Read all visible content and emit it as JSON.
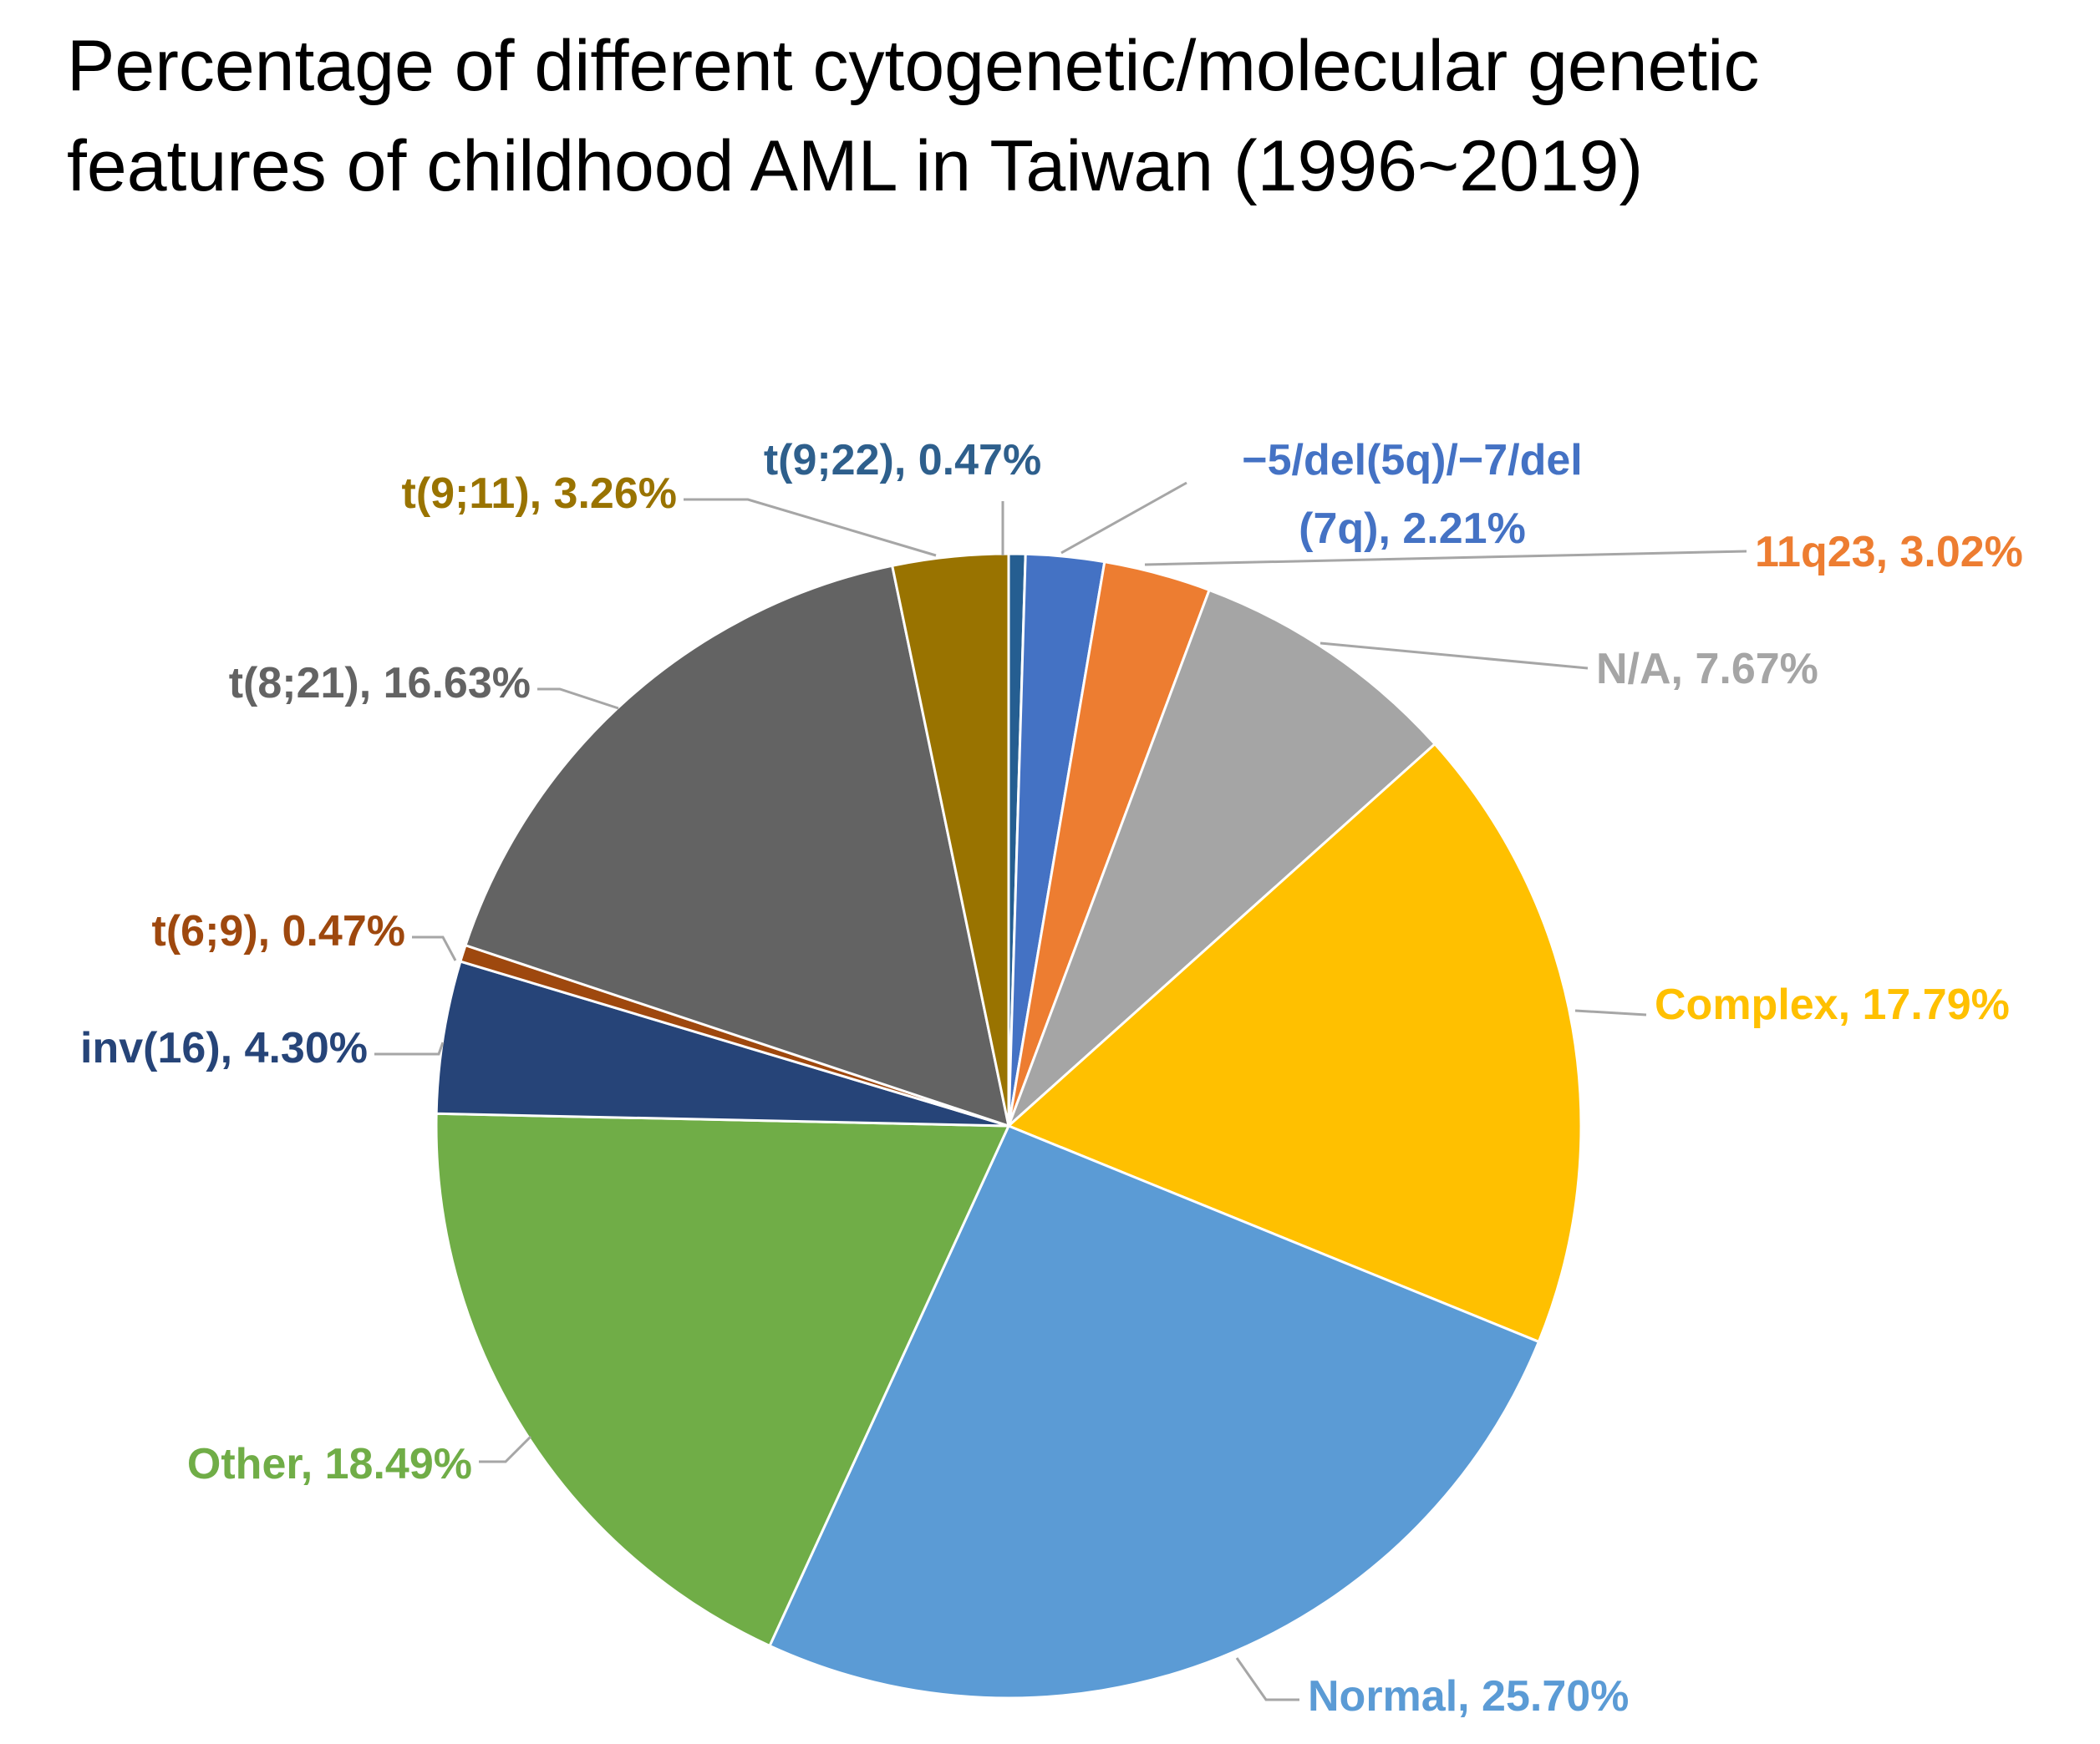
{
  "chart_data": {
    "type": "pie",
    "title_lines": [
      "Percentage of different cytogenetic/molecular genetic",
      "features of childhood AML in Taiwan (1996~2019)"
    ],
    "slices": [
      {
        "name": "t(9;22)",
        "value": 0.47,
        "label_lines": [
          "t(9;22), 0.47%"
        ],
        "color": "#255E91",
        "label_color": "#2E5F8C"
      },
      {
        "name": "-5/del(5q)/-7/del(7q)",
        "value": 2.21,
        "label_lines": [
          "−5/del(5q)/−7/del",
          "(7q), 2.21%"
        ],
        "color": "#4472C4",
        "label_color": "#4472C4"
      },
      {
        "name": "11q23",
        "value": 3.02,
        "label_lines": [
          "11q23, 3.02%"
        ],
        "color": "#ED7D31",
        "label_color": "#ED7D31"
      },
      {
        "name": "N/A",
        "value": 7.67,
        "label_lines": [
          "N/A, 7.67%"
        ],
        "color": "#A5A5A5",
        "label_color": "#A5A5A5"
      },
      {
        "name": "Complex",
        "value": 17.79,
        "label_lines": [
          "Complex, 17.79%"
        ],
        "color": "#FFC000",
        "label_color": "#FFC000"
      },
      {
        "name": "Normal",
        "value": 25.7,
        "label_lines": [
          "Normal, 25.70%"
        ],
        "color": "#5B9BD5",
        "label_color": "#5B9BD5"
      },
      {
        "name": "Other",
        "value": 18.49,
        "label_lines": [
          "Other, 18.49%"
        ],
        "color": "#70AD47",
        "label_color": "#70AD47"
      },
      {
        "name": "inv(16)",
        "value": 4.3,
        "label_lines": [
          "inv(16), 4.30%"
        ],
        "color": "#264478",
        "label_color": "#264478"
      },
      {
        "name": "t(6;9)",
        "value": 0.47,
        "label_lines": [
          "t(6;9), 0.47%"
        ],
        "color": "#9E480E",
        "label_color": "#9E480E"
      },
      {
        "name": "t(8;21)",
        "value": 16.63,
        "label_lines": [
          "t(8;21), 16.63%"
        ],
        "color": "#636363",
        "label_color": "#636363"
      },
      {
        "name": "t(9;11)",
        "value": 3.26,
        "label_lines": [
          "t(9;11), 3.26%"
        ],
        "color": "#997300",
        "label_color": "#997300"
      }
    ],
    "legend": "none",
    "data_labels": "outside-with-leader-lines"
  }
}
